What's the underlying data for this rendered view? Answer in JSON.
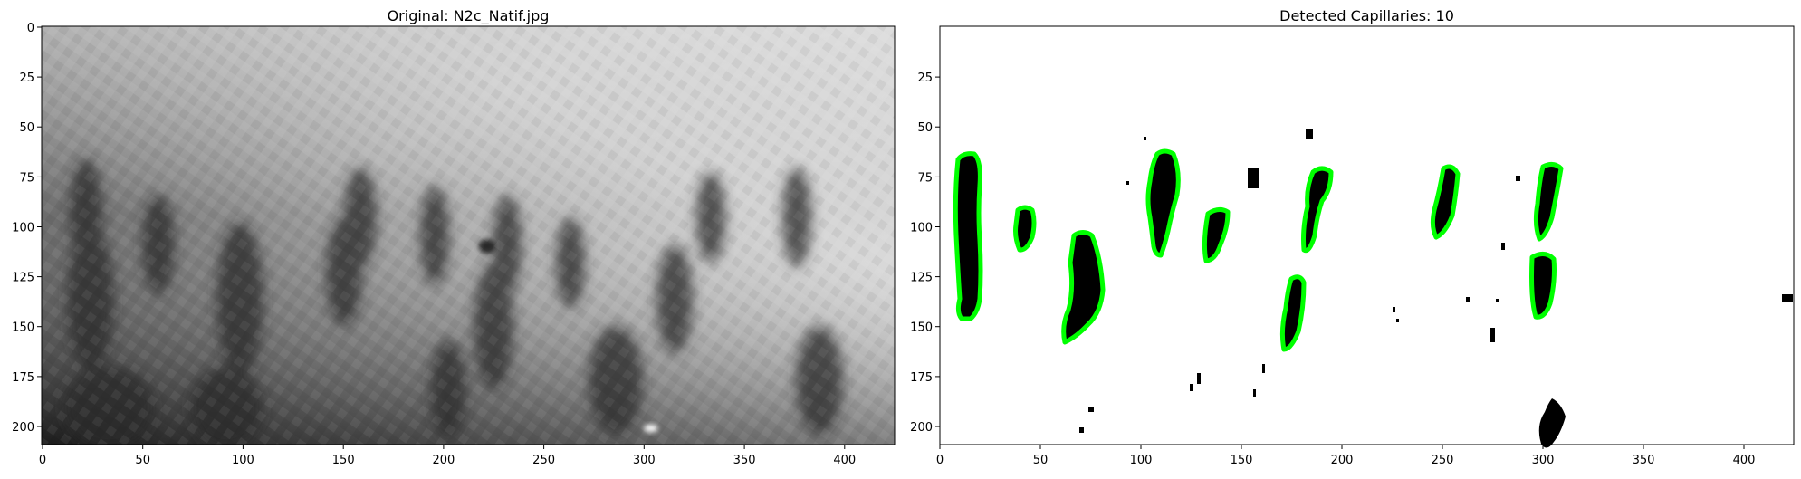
{
  "left_panel": {
    "title": "Original: N2c_Natif.jpg",
    "x_ticks": [
      "0",
      "50",
      "100",
      "150",
      "200",
      "250",
      "300",
      "350",
      "400"
    ],
    "y_ticks": [
      "0",
      "25",
      "50",
      "75",
      "100",
      "125",
      "150",
      "175",
      "200"
    ]
  },
  "right_panel": {
    "title": "Detected Capillaries: 10",
    "x_ticks": [
      "0",
      "50",
      "100",
      "150",
      "200",
      "250",
      "300",
      "350",
      "400"
    ],
    "y_ticks": [
      "25",
      "50",
      "75",
      "100",
      "125",
      "150",
      "175",
      "200"
    ]
  },
  "colors": {
    "outline": "#00ff00",
    "capillary": "#000000",
    "background": "#ffffff"
  }
}
